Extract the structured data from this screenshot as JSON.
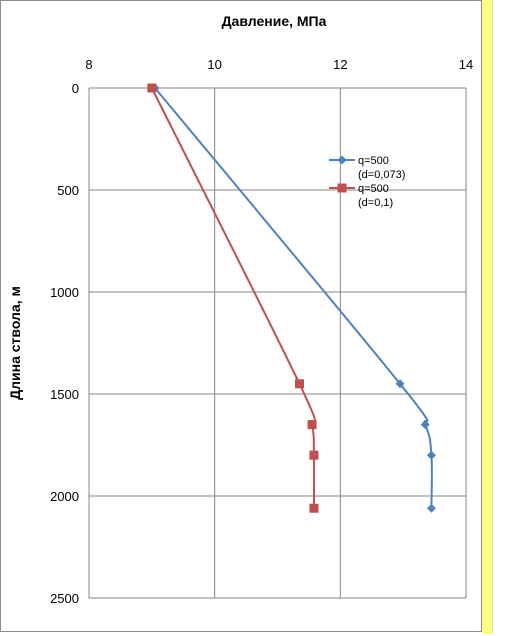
{
  "chart_data": {
    "type": "line",
    "title": "",
    "xlabel": "Давление, МПа",
    "ylabel": "Длина ствола, м",
    "xlim": [
      8,
      14
    ],
    "ylim": [
      0,
      2500
    ],
    "y_inverted": true,
    "x_axis_position": "top",
    "x_ticks": [
      "8",
      "10",
      "12",
      "14"
    ],
    "y_ticks": [
      "0",
      "500",
      "1000",
      "1500",
      "2000",
      "2500"
    ],
    "grid": true,
    "legend_position": "right",
    "series": [
      {
        "name": "q=500 (d=0,073)",
        "legend_lines": [
          "q=500",
          "(d=0,073)"
        ],
        "color": "#4f81bd",
        "marker": "diamond",
        "points": [
          [
            9.05,
            0
          ],
          [
            12.95,
            1450
          ],
          [
            13.35,
            1650
          ],
          [
            13.45,
            1800
          ],
          [
            13.45,
            2060
          ]
        ]
      },
      {
        "name": "q=500 (d=0,1)",
        "legend_lines": [
          "q=500",
          "(d=0,1)"
        ],
        "color": "#c0504d",
        "marker": "square",
        "points": [
          [
            9.0,
            0
          ],
          [
            11.35,
            1450
          ],
          [
            11.55,
            1650
          ],
          [
            11.58,
            1800
          ],
          [
            11.58,
            2060
          ]
        ]
      }
    ]
  }
}
